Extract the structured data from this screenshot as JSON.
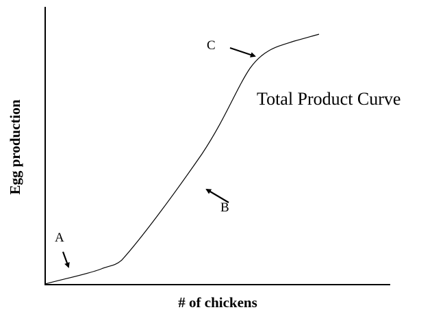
{
  "title": "Total Product Curve",
  "axes": {
    "x_label": "# of chickens",
    "y_label": "Egg production"
  },
  "points": [
    {
      "label": "A"
    },
    {
      "label": "B"
    },
    {
      "label": "C"
    }
  ]
}
